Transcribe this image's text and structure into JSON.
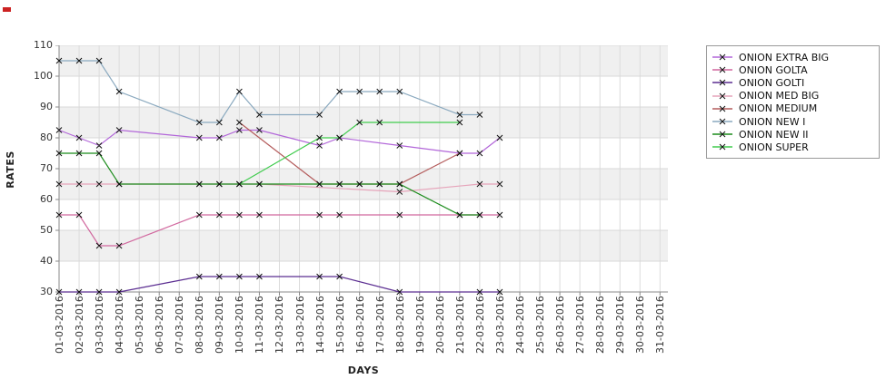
{
  "chart_data": {
    "type": "line",
    "title": "",
    "xlabel": "DAYS",
    "ylabel": "RATES",
    "ylim": [
      30,
      110
    ],
    "y_ticks": [
      110,
      100,
      90,
      80,
      70,
      60,
      50,
      40,
      30
    ],
    "grid": true,
    "legend_position": "top-right",
    "band_colors": [
      "#f0f0f0",
      "#ffffff"
    ],
    "gridline_color": "#dcdcdc",
    "axis_color": "#8a8a8a",
    "marker": "x",
    "marker_color": "#111111",
    "x_categories": [
      "01-03-2016",
      "02-03-2016",
      "03-03-2016",
      "04-03-2016",
      "05-03-2016",
      "06-03-2016",
      "07-03-2016",
      "08-03-2016",
      "09-03-2016",
      "10-03-2016",
      "11-03-2016",
      "12-03-2016",
      "13-03-2016",
      "14-03-2016",
      "15-03-2016",
      "16-03-2016",
      "17-03-2016",
      "18-03-2016",
      "19-03-2016",
      "20-03-2016",
      "21-03-2016",
      "22-03-2016",
      "23-03-2016",
      "24-03-2016",
      "25-03-2016",
      "26-03-2016",
      "27-03-2016",
      "28-03-2016",
      "29-03-2016",
      "30-03-2016",
      "31-03-2016"
    ],
    "series": [
      {
        "name": "ONION EXTRA BIG",
        "color": "#b266d9",
        "points": [
          [
            1,
            82.5
          ],
          [
            2,
            80
          ],
          [
            3,
            77.5
          ],
          [
            4,
            82.5
          ],
          [
            8,
            80
          ],
          [
            9,
            80
          ],
          [
            10,
            82.5
          ],
          [
            11,
            82.5
          ],
          [
            14,
            77.5
          ],
          [
            15,
            80
          ],
          [
            18,
            77.5
          ],
          [
            21,
            75
          ],
          [
            22,
            75
          ],
          [
            23,
            80
          ]
        ]
      },
      {
        "name": "ONION GOLTA",
        "color": "#d1679e",
        "points": [
          [
            1,
            55
          ],
          [
            2,
            55
          ],
          [
            3,
            45
          ],
          [
            4,
            45
          ],
          [
            8,
            55
          ],
          [
            9,
            55
          ],
          [
            10,
            55
          ],
          [
            11,
            55
          ],
          [
            14,
            55
          ],
          [
            15,
            55
          ],
          [
            18,
            55
          ],
          [
            21,
            55
          ],
          [
            22,
            55
          ],
          [
            23,
            55
          ]
        ]
      },
      {
        "name": "ONION GOLTI",
        "color": "#5b2d91",
        "points": [
          [
            1,
            30
          ],
          [
            2,
            30
          ],
          [
            3,
            30
          ],
          [
            4,
            30
          ],
          [
            8,
            35
          ],
          [
            9,
            35
          ],
          [
            10,
            35
          ],
          [
            11,
            35
          ],
          [
            14,
            35
          ],
          [
            15,
            35
          ],
          [
            18,
            30
          ],
          [
            22,
            30
          ],
          [
            23,
            30
          ]
        ]
      },
      {
        "name": "ONION MED BIG",
        "color": "#e6a4ba",
        "points": [
          [
            1,
            65
          ],
          [
            2,
            65
          ],
          [
            3,
            65
          ],
          [
            4,
            65
          ],
          [
            8,
            65
          ],
          [
            9,
            65
          ],
          [
            10,
            65
          ],
          [
            11,
            65
          ],
          [
            18,
            62.5
          ],
          [
            22,
            65
          ],
          [
            23,
            65
          ]
        ]
      },
      {
        "name": "ONION MEDIUM",
        "color": "#b45c5c",
        "points": [
          [
            10,
            85
          ],
          [
            14,
            65
          ],
          [
            15,
            65
          ],
          [
            16,
            65
          ],
          [
            17,
            65
          ],
          [
            18,
            65
          ],
          [
            21,
            75
          ]
        ]
      },
      {
        "name": "ONION NEW I",
        "color": "#8aa9bf",
        "points": [
          [
            1,
            105
          ],
          [
            2,
            105
          ],
          [
            3,
            105
          ],
          [
            4,
            95
          ],
          [
            8,
            85
          ],
          [
            9,
            85
          ],
          [
            10,
            95
          ],
          [
            11,
            87.5
          ],
          [
            14,
            87.5
          ],
          [
            15,
            95
          ],
          [
            16,
            95
          ],
          [
            17,
            95
          ],
          [
            18,
            95
          ],
          [
            21,
            87.5
          ],
          [
            22,
            87.5
          ]
        ]
      },
      {
        "name": "ONION NEW II",
        "color": "#1b8c1b",
        "points": [
          [
            1,
            75
          ],
          [
            2,
            75
          ],
          [
            3,
            75
          ],
          [
            4,
            65
          ],
          [
            8,
            65
          ],
          [
            9,
            65
          ],
          [
            10,
            65
          ],
          [
            11,
            65
          ],
          [
            14,
            65
          ],
          [
            15,
            65
          ],
          [
            16,
            65
          ],
          [
            17,
            65
          ],
          [
            18,
            65
          ],
          [
            21,
            55
          ],
          [
            22,
            55
          ]
        ]
      },
      {
        "name": "ONION SUPER",
        "color": "#40cc4e",
        "points": [
          [
            10,
            65
          ],
          [
            14,
            80
          ],
          [
            15,
            80
          ],
          [
            16,
            85
          ],
          [
            17,
            85
          ],
          [
            21,
            85
          ]
        ]
      }
    ]
  }
}
